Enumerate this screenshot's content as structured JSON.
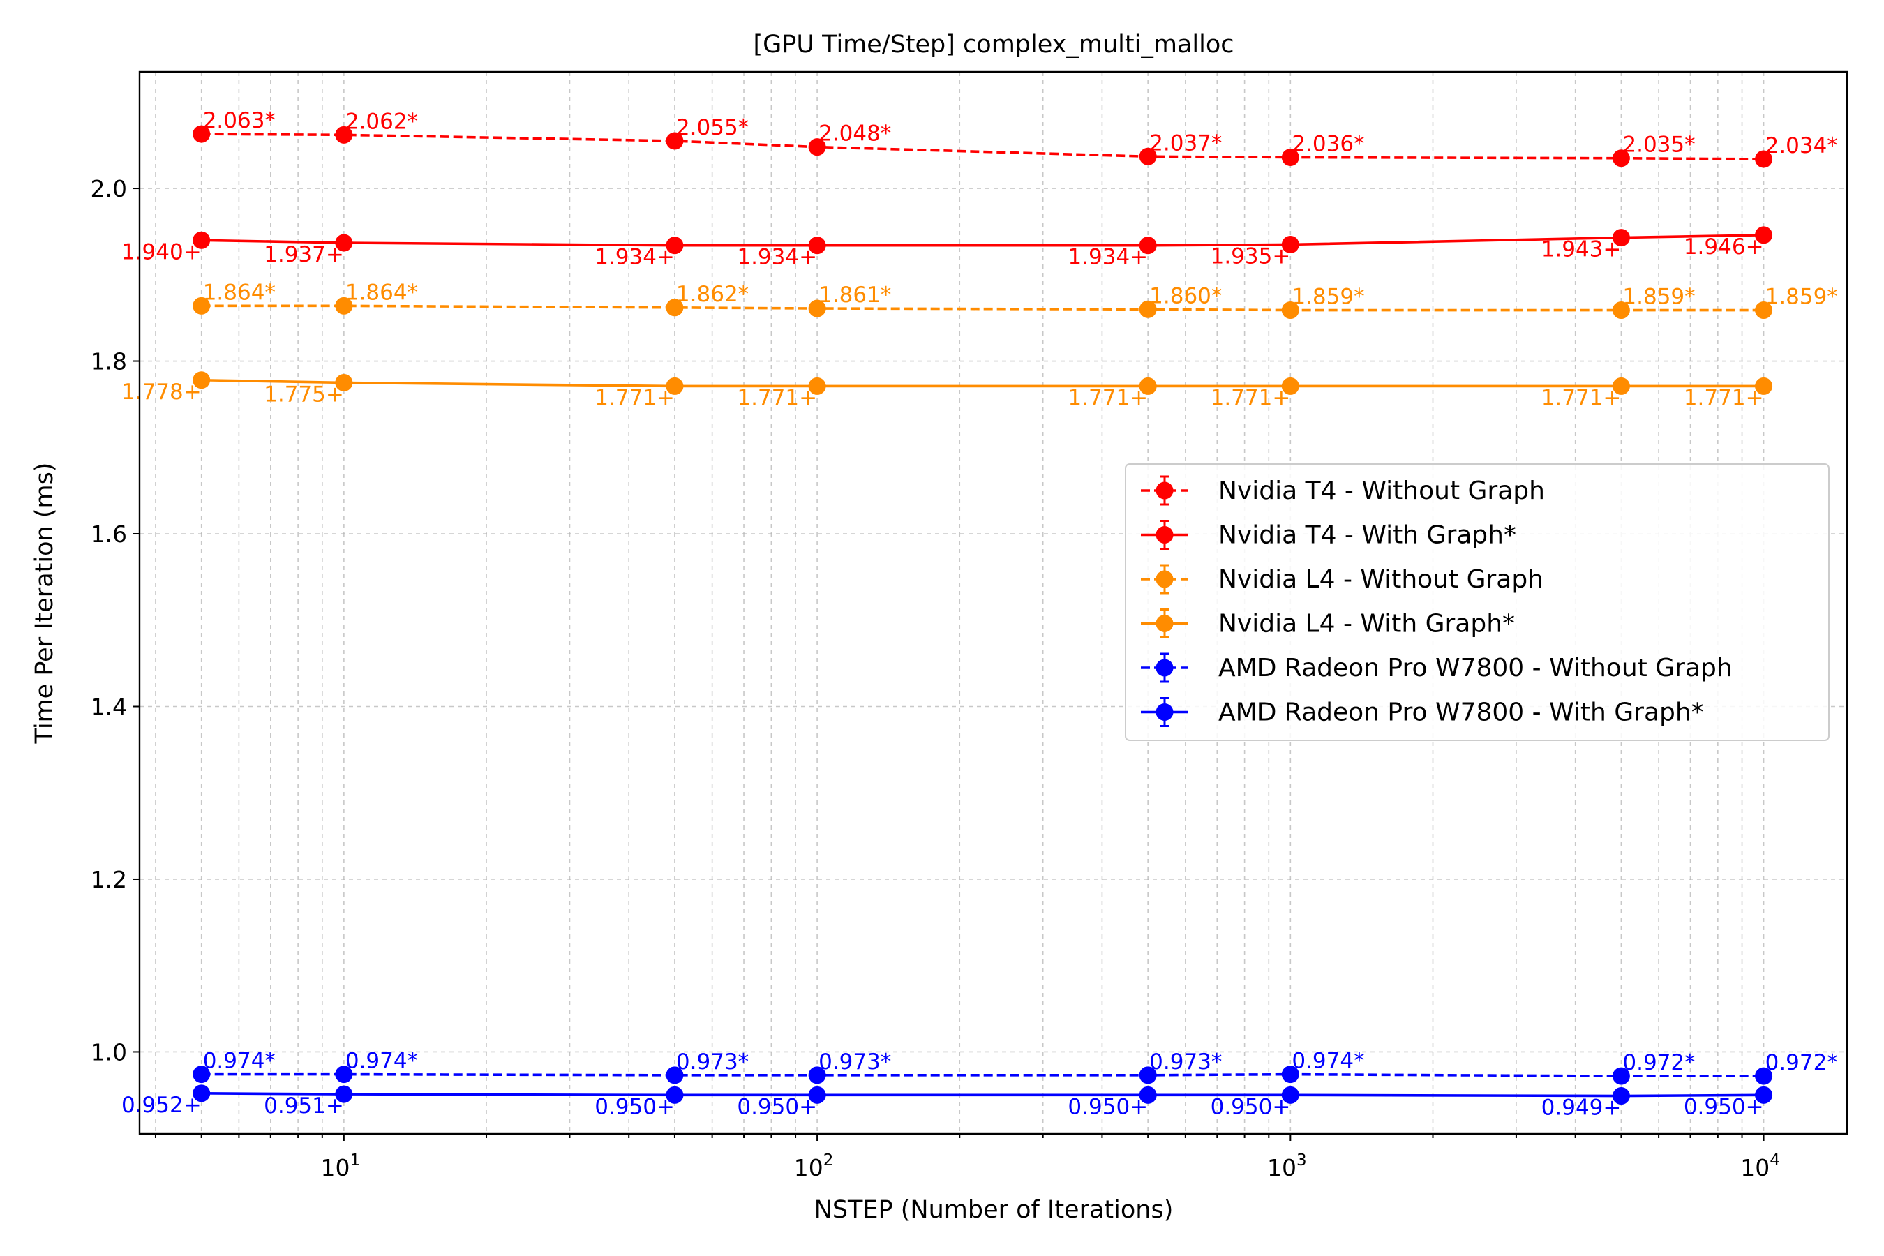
{
  "chart_data": {
    "type": "line",
    "title": "[GPU Time/Step] complex_multi_malloc",
    "xlabel": "NSTEP (Number of Iterations)",
    "ylabel": "Time Per Iteration (ms)",
    "xscale": "log",
    "xlim": [
      3.7,
      15000
    ],
    "ylim": [
      0.905,
      2.135
    ],
    "x_ticks": [
      {
        "base": "10",
        "exp": "1",
        "value": 10
      },
      {
        "base": "10",
        "exp": "2",
        "value": 100
      },
      {
        "base": "10",
        "exp": "3",
        "value": 1000
      },
      {
        "base": "10",
        "exp": "4",
        "value": 10000
      }
    ],
    "y_ticks": [
      {
        "label": "1.0",
        "value": 1.0
      },
      {
        "label": "1.2",
        "value": 1.2
      },
      {
        "label": "1.4",
        "value": 1.4
      },
      {
        "label": "1.6",
        "value": 1.6
      },
      {
        "label": "1.8",
        "value": 1.8
      },
      {
        "label": "2.0",
        "value": 2.0
      }
    ],
    "grid": true,
    "legend_position": "center-right",
    "x": [
      5,
      10,
      50,
      100,
      500,
      1000,
      5000,
      10000
    ],
    "series": [
      {
        "name": "Nvidia T4 - Without Graph",
        "color": "#ff0000",
        "style": "dashed",
        "values": [
          2.063,
          2.062,
          2.055,
          2.048,
          2.037,
          2.036,
          2.035,
          2.034
        ],
        "labels": [
          "2.063*",
          "2.062*",
          "2.055*",
          "2.048*",
          "2.037*",
          "2.036*",
          "2.035*",
          "2.034*"
        ]
      },
      {
        "name": "Nvidia T4 - With Graph*",
        "color": "#ff0000",
        "style": "solid",
        "values": [
          1.94,
          1.937,
          1.934,
          1.934,
          1.934,
          1.935,
          1.943,
          1.946
        ],
        "labels": [
          "1.940+",
          "1.937+",
          "1.934+",
          "1.934+",
          "1.934+",
          "1.935+",
          "1.943+",
          "1.946+"
        ]
      },
      {
        "name": "Nvidia L4 - Without Graph",
        "color": "#ff8c00",
        "style": "dashed",
        "values": [
          1.864,
          1.864,
          1.862,
          1.861,
          1.86,
          1.859,
          1.859,
          1.859
        ],
        "labels": [
          "1.864*",
          "1.864*",
          "1.862*",
          "1.861*",
          "1.860*",
          "1.859*",
          "1.859*",
          "1.859*"
        ]
      },
      {
        "name": "Nvidia L4 - With Graph*",
        "color": "#ff8c00",
        "style": "solid",
        "values": [
          1.778,
          1.775,
          1.771,
          1.771,
          1.771,
          1.771,
          1.771,
          1.771
        ],
        "labels": [
          "1.778+",
          "1.775+",
          "1.771+",
          "1.771+",
          "1.771+",
          "1.771+",
          "1.771+",
          "1.771+"
        ]
      },
      {
        "name": "AMD Radeon Pro W7800 - Without Graph",
        "color": "#0000ff",
        "style": "dashed",
        "values": [
          0.974,
          0.974,
          0.973,
          0.973,
          0.973,
          0.974,
          0.972,
          0.972
        ],
        "labels": [
          "0.974*",
          "0.974*",
          "0.973*",
          "0.973*",
          "0.973*",
          "0.974*",
          "0.972*",
          "0.972*"
        ]
      },
      {
        "name": "AMD Radeon Pro W7800 - With Graph*",
        "color": "#0000ff",
        "style": "solid",
        "values": [
          0.952,
          0.951,
          0.95,
          0.95,
          0.95,
          0.95,
          0.949,
          0.95
        ],
        "labels": [
          "0.952+",
          "0.951+",
          "0.950+",
          "0.950+",
          "0.950+",
          "0.950+",
          "0.949+",
          "0.950+"
        ]
      }
    ]
  }
}
